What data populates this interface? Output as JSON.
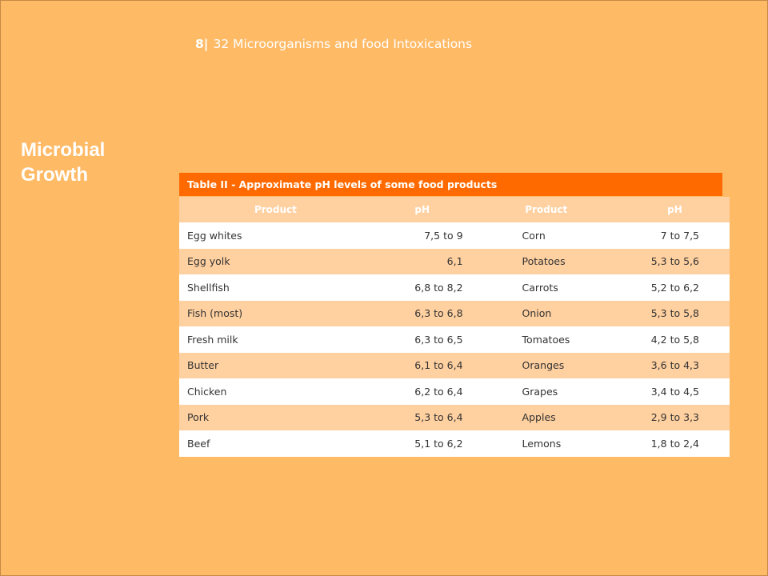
{
  "header": {
    "page_number": "8",
    "separator": "|",
    "title": "32 Microorganisms and food Intoxications"
  },
  "sidebar": {
    "title": "Microbial Growth"
  },
  "table": {
    "caption": "Table II  - Approximate pH levels of some food products",
    "columns": [
      "Product",
      "pH",
      "Product",
      "pH"
    ],
    "rows": [
      [
        "Egg whites",
        "7,5 to 9",
        "Corn",
        "7 to 7,5"
      ],
      [
        "Egg yolk",
        "6,1",
        "Potatoes",
        "5,3 to 5,6"
      ],
      [
        "Shellfish",
        "6,8 to 8,2",
        "Carrots",
        "5,2 to 6,2"
      ],
      [
        "Fish (most)",
        "6,3 to 6,8",
        "Onion",
        "5,3 to 5,8"
      ],
      [
        "Fresh milk",
        "6,3 to 6,5",
        "Tomatoes",
        "4,2 to 5,8"
      ],
      [
        "Butter",
        "6,1 to 6,4",
        "Oranges",
        "3,6 to 4,3"
      ],
      [
        "Chicken",
        "6,2 to 6,4",
        "Grapes",
        "3,4 to 4,5"
      ],
      [
        "Pork",
        "5,3 to 6,4",
        "Apples",
        "2,9 to 3,3"
      ],
      [
        "Beef",
        "5,1 to 6,2",
        "Lemons",
        "1,8 to 2,4"
      ]
    ]
  },
  "colors": {
    "background": "#ffba66",
    "caption_bar": "#ff6a00",
    "header_row": "#ffd0a0",
    "alt_row": "#ffd0a0"
  }
}
